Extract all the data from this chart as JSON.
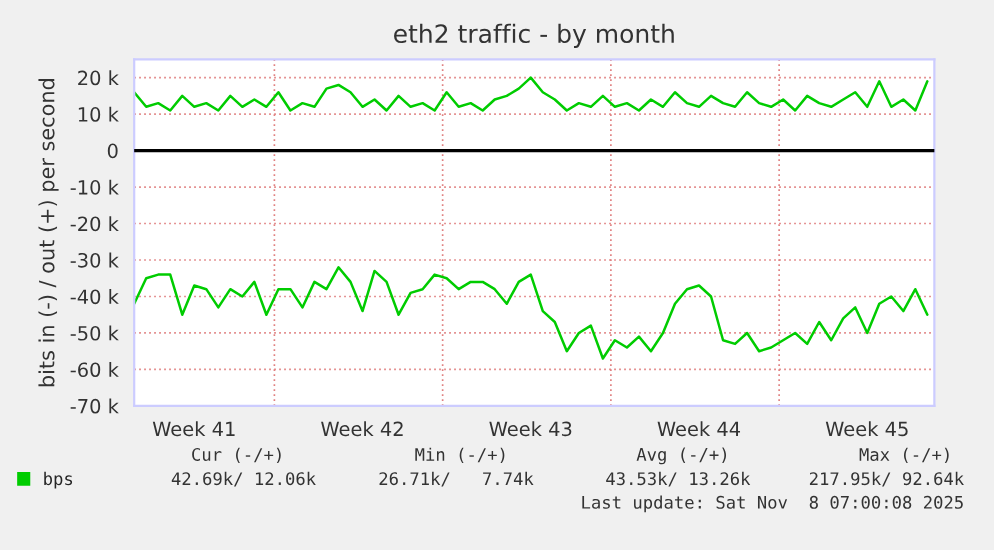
{
  "chart_data": {
    "type": "line",
    "title": "eth2 traffic - by month",
    "ylabel": "bits in (-) / out (+) per second",
    "x": [
      "2025-10-06T00:00",
      "2025-10-06T12:00",
      "2025-10-07T00:00",
      "2025-10-07T12:00",
      "2025-10-08T00:00",
      "2025-10-08T12:00",
      "2025-10-09T00:00",
      "2025-10-09T12:00",
      "2025-10-10T00:00",
      "2025-10-10T12:00",
      "2025-10-11T00:00",
      "2025-10-11T12:00",
      "2025-10-12T00:00",
      "2025-10-12T12:00",
      "2025-10-13T00:00",
      "2025-10-13T12:00",
      "2025-10-14T00:00",
      "2025-10-14T12:00",
      "2025-10-15T00:00",
      "2025-10-15T12:00",
      "2025-10-16T00:00",
      "2025-10-16T12:00",
      "2025-10-17T00:00",
      "2025-10-17T12:00",
      "2025-10-18T00:00",
      "2025-10-18T12:00",
      "2025-10-19T00:00",
      "2025-10-19T12:00",
      "2025-10-20T00:00",
      "2025-10-20T12:00",
      "2025-10-21T00:00",
      "2025-10-21T12:00",
      "2025-10-22T00:00",
      "2025-10-22T12:00",
      "2025-10-23T00:00",
      "2025-10-23T12:00",
      "2025-10-24T00:00",
      "2025-10-24T12:00",
      "2025-10-25T00:00",
      "2025-10-25T12:00",
      "2025-10-26T00:00",
      "2025-10-26T12:00",
      "2025-10-27T00:00",
      "2025-10-27T12:00",
      "2025-10-28T00:00",
      "2025-10-28T12:00",
      "2025-10-29T00:00",
      "2025-10-29T12:00",
      "2025-10-30T00:00",
      "2025-10-30T12:00",
      "2025-10-31T00:00",
      "2025-10-31T12:00",
      "2025-11-01T00:00",
      "2025-11-01T12:00",
      "2025-11-02T00:00",
      "2025-11-02T12:00",
      "2025-11-03T00:00",
      "2025-11-03T12:00",
      "2025-11-04T00:00",
      "2025-11-04T12:00",
      "2025-11-05T00:00",
      "2025-11-05T12:00",
      "2025-11-06T00:00",
      "2025-11-06T12:00",
      "2025-11-07T00:00",
      "2025-11-07T12:00",
      "2025-11-08T00:00"
    ],
    "series": [
      {
        "name": "bps",
        "color": "#00cc00",
        "values": [
          16000,
          12000,
          13000,
          11000,
          15000,
          12000,
          13000,
          11000,
          15000,
          12000,
          14000,
          12000,
          16000,
          11000,
          13000,
          12000,
          17000,
          18000,
          16000,
          12000,
          14000,
          11000,
          15000,
          12000,
          13000,
          11000,
          16000,
          12000,
          13000,
          11000,
          14000,
          15000,
          17000,
          20000,
          16000,
          14000,
          11000,
          13000,
          12000,
          15000,
          12000,
          13000,
          11000,
          14000,
          12000,
          16000,
          13000,
          12000,
          15000,
          13000,
          12000,
          16000,
          13000,
          12000,
          14000,
          11000,
          15000,
          13000,
          12000,
          14000,
          16000,
          12000,
          19000,
          12000,
          14000,
          11000,
          19000
        ]
      },
      {
        "color": "#00cc00",
        "values": [
          -42000,
          -35000,
          -34000,
          -34000,
          -45000,
          -37000,
          -38000,
          -43000,
          -38000,
          -40000,
          -36000,
          -45000,
          -38000,
          -38000,
          -43000,
          -36000,
          -38000,
          -32000,
          -36000,
          -44000,
          -33000,
          -36000,
          -45000,
          -39000,
          -38000,
          -34000,
          -35000,
          -38000,
          -36000,
          -36000,
          -38000,
          -42000,
          -36000,
          -34000,
          -44000,
          -47000,
          -55000,
          -50000,
          -48000,
          -57000,
          -52000,
          -54000,
          -51000,
          -55000,
          -50000,
          -42000,
          -38000,
          -37000,
          -40000,
          -52000,
          -53000,
          -50000,
          -55000,
          -54000,
          -52000,
          -50000,
          -53000,
          -47000,
          -52000,
          -46000,
          -43000,
          -50000,
          -42000,
          -40000,
          -44000,
          -38000,
          -45000
        ]
      }
    ],
    "xlim": [
      "2025-10-06T00:00",
      "2025-11-08T07:00"
    ],
    "xticks": [
      {
        "value": "2025-10-08T12:00",
        "label": "Week 41"
      },
      {
        "value": "2025-10-11T20:00",
        "label": null
      },
      {
        "value": "2025-10-15T12:00",
        "label": "Week 42"
      },
      {
        "value": "2025-10-18T20:00",
        "label": null
      },
      {
        "value": "2025-10-22T12:00",
        "label": "Week 43"
      },
      {
        "value": "2025-10-25T20:00",
        "label": null
      },
      {
        "value": "2025-10-29T12:00",
        "label": "Week 44"
      },
      {
        "value": "2025-11-01T20:00",
        "label": null
      },
      {
        "value": "2025-11-05T12:00",
        "label": "Week 45"
      }
    ],
    "ylim": [
      -70000,
      25000
    ],
    "yticks": [
      {
        "value": -70000,
        "label": "-70 k"
      },
      {
        "value": -60000,
        "label": "-60 k"
      },
      {
        "value": -50000,
        "label": "-50 k"
      },
      {
        "value": -40000,
        "label": "-40 k"
      },
      {
        "value": -30000,
        "label": "-30 k"
      },
      {
        "value": -20000,
        "label": "-20 k"
      },
      {
        "value": -10000,
        "label": "-10 k"
      },
      0,
      {
        "value": 10000,
        "label": "10 k"
      },
      {
        "value": 20000,
        "label": "20 k"
      }
    ],
    "ref_lines": [
      {
        "axis": "y",
        "value": 0,
        "color": "#000000"
      }
    ],
    "grid": true,
    "legend": "bottom",
    "marker": "none",
    "line_style": "solid",
    "annotations": [
      "Cur (-/+)",
      "Min (-/+)",
      "Avg (-/+)",
      "Max (-/+)",
      "42.69k/ 12.06k",
      "26.71k/   7.74k",
      "43.53k/ 13.26k",
      "217.95k/ 92.64k",
      "Last update: Sat Nov  8 07:00:08 2025"
    ]
  }
}
